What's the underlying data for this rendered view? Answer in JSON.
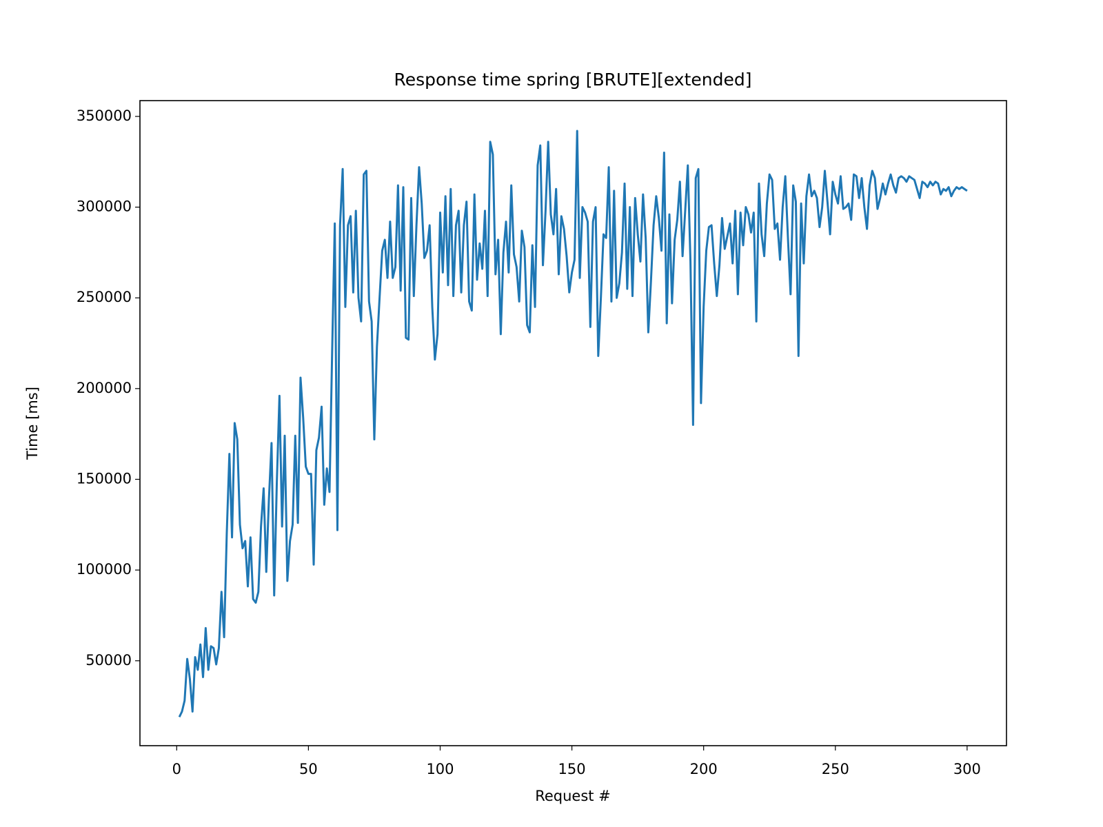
{
  "chart_data": {
    "type": "line",
    "title": "Response time spring [BRUTE][extended]",
    "x_label": "Request #",
    "y_label": "Time [ms]",
    "xlim": [
      -13.95,
      314.95
    ],
    "xticks": [
      0,
      50,
      100,
      150,
      200,
      250,
      300
    ],
    "ylim": [
      3200,
      358700
    ],
    "yticks": [
      50000,
      100000,
      150000,
      200000,
      250000,
      300000,
      350000
    ],
    "grid": false,
    "x": [
      1,
      2,
      3,
      4,
      5,
      6,
      7,
      8,
      9,
      10,
      11,
      12,
      13,
      14,
      15,
      16,
      17,
      18,
      19,
      20,
      21,
      22,
      23,
      24,
      25,
      26,
      27,
      28,
      29,
      30,
      31,
      32,
      33,
      34,
      35,
      36,
      37,
      38,
      39,
      40,
      41,
      42,
      43,
      44,
      45,
      46,
      47,
      48,
      49,
      50,
      51,
      52,
      53,
      54,
      55,
      56,
      57,
      58,
      59,
      60,
      61,
      62,
      63,
      64,
      65,
      66,
      67,
      68,
      69,
      70,
      71,
      72,
      73,
      74,
      75,
      76,
      77,
      78,
      79,
      80,
      81,
      82,
      83,
      84,
      85,
      86,
      87,
      88,
      89,
      90,
      91,
      92,
      93,
      94,
      95,
      96,
      97,
      98,
      99,
      100,
      101,
      102,
      103,
      104,
      105,
      106,
      107,
      108,
      109,
      110,
      111,
      112,
      113,
      114,
      115,
      116,
      117,
      118,
      119,
      120,
      121,
      122,
      123,
      124,
      125,
      126,
      127,
      128,
      129,
      130,
      131,
      132,
      133,
      134,
      135,
      136,
      137,
      138,
      139,
      140,
      141,
      142,
      143,
      144,
      145,
      146,
      147,
      148,
      149,
      150,
      151,
      152,
      153,
      154,
      155,
      156,
      157,
      158,
      159,
      160,
      161,
      162,
      163,
      164,
      165,
      166,
      167,
      168,
      169,
      170,
      171,
      172,
      173,
      174,
      175,
      176,
      177,
      178,
      179,
      180,
      181,
      182,
      183,
      184,
      185,
      186,
      187,
      188,
      189,
      190,
      191,
      192,
      193,
      194,
      195,
      196,
      197,
      198,
      199,
      200,
      201,
      202,
      203,
      204,
      205,
      206,
      207,
      208,
      209,
      210,
      211,
      212,
      213,
      214,
      215,
      216,
      217,
      218,
      219,
      220,
      221,
      222,
      223,
      224,
      225,
      226,
      227,
      228,
      229,
      230,
      231,
      232,
      233,
      234,
      235,
      236,
      237,
      238,
      239,
      240,
      241,
      242,
      243,
      244,
      245,
      246,
      247,
      248,
      249,
      250,
      251,
      252,
      253,
      254,
      255,
      256,
      257,
      258,
      259,
      260,
      261,
      262,
      263,
      264,
      265,
      266,
      267,
      268,
      269,
      270,
      271,
      272,
      273,
      274,
      275,
      276,
      277,
      278,
      279,
      280,
      281,
      282,
      283,
      284,
      285,
      286,
      287,
      288,
      289,
      290,
      291,
      292,
      293,
      294,
      295,
      296,
      297,
      298,
      299,
      300
    ],
    "series": [
      {
        "color": "#1f77b4",
        "values": [
          19000,
          22000,
          28000,
          51000,
          40000,
          22000,
          52000,
          45000,
          59000,
          41000,
          68000,
          45000,
          58000,
          57000,
          48000,
          57000,
          88000,
          63000,
          120000,
          164000,
          118000,
          181000,
          172000,
          125000,
          112000,
          116000,
          91000,
          118000,
          84000,
          82000,
          88000,
          124000,
          145000,
          99000,
          139000,
          170000,
          86000,
          148000,
          196000,
          124000,
          174000,
          94000,
          116000,
          125000,
          174000,
          126000,
          206000,
          184000,
          157000,
          153000,
          153000,
          103000,
          166000,
          173000,
          190000,
          136000,
          156000,
          143000,
          220000,
          291000,
          122000,
          290000,
          321000,
          245000,
          290000,
          295000,
          253000,
          298000,
          250000,
          237000,
          318000,
          320000,
          248000,
          237000,
          172000,
          223000,
          250000,
          276000,
          282000,
          261000,
          292000,
          261000,
          267000,
          312000,
          254000,
          311000,
          228000,
          227000,
          305000,
          251000,
          290000,
          322000,
          302000,
          272000,
          276000,
          290000,
          245000,
          216000,
          230000,
          297000,
          264000,
          306000,
          257000,
          310000,
          251000,
          290000,
          298000,
          253000,
          290000,
          303000,
          248000,
          243000,
          307000,
          260000,
          280000,
          266000,
          298000,
          251000,
          336000,
          329000,
          263000,
          282000,
          230000,
          275000,
          292000,
          264000,
          312000,
          274000,
          267000,
          248000,
          287000,
          278000,
          235000,
          231000,
          279000,
          245000,
          323000,
          334000,
          268000,
          298000,
          336000,
          296000,
          285000,
          310000,
          263000,
          295000,
          288000,
          273000,
          253000,
          264000,
          271000,
          342000,
          261000,
          300000,
          297000,
          292000,
          234000,
          292000,
          300000,
          218000,
          250000,
          285000,
          283000,
          322000,
          248000,
          309000,
          250000,
          258000,
          275000,
          313000,
          255000,
          300000,
          251000,
          305000,
          285000,
          270000,
          307000,
          283000,
          231000,
          259000,
          290000,
          306000,
          294000,
          276000,
          330000,
          236000,
          296000,
          247000,
          282000,
          293000,
          314000,
          273000,
          298000,
          323000,
          270000,
          180000,
          316000,
          321000,
          192000,
          245000,
          276000,
          289000,
          290000,
          269000,
          251000,
          268000,
          294000,
          277000,
          284000,
          291000,
          269000,
          298000,
          252000,
          297000,
          279000,
          300000,
          296000,
          286000,
          297000,
          237000,
          313000,
          285000,
          273000,
          302000,
          318000,
          315000,
          288000,
          291000,
          271000,
          300000,
          317000,
          283000,
          252000,
          312000,
          303000,
          218000,
          302000,
          269000,
          306000,
          318000,
          306000,
          309000,
          305000,
          289000,
          300000,
          320000,
          303000,
          285000,
          314000,
          307000,
          302000,
          317000,
          299000,
          300000,
          302000,
          293000,
          318000,
          317000,
          305000,
          316000,
          300000,
          288000,
          312000,
          320000,
          316000,
          299000,
          305000,
          313000,
          307000,
          313000,
          318000,
          312000,
          308000,
          316000,
          317000,
          316000,
          314000,
          317000,
          316000,
          315000,
          310000,
          305000,
          314000,
          313000,
          311000,
          314000,
          312000,
          314000,
          313000,
          307000,
          310000,
          309000,
          311000,
          306000,
          309000,
          311000,
          310000,
          311000,
          310000,
          309000
        ]
      }
    ]
  }
}
